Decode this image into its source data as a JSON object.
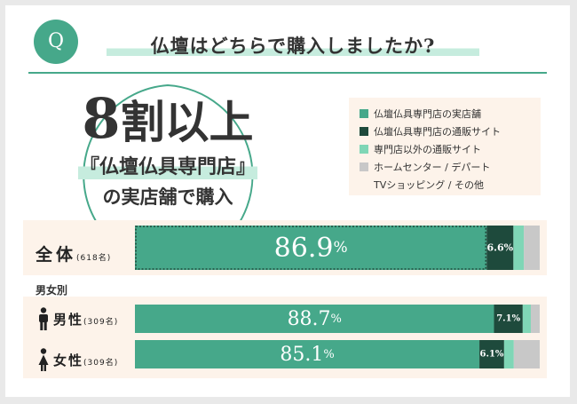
{
  "question": {
    "badge": "Q",
    "text": "仏壇はどちらで購入しましたか?"
  },
  "callout": {
    "big_number": "8",
    "big_suffix": "割以上",
    "line2": "『仏壇仏具専門店』",
    "line3": "の実店舗で購入"
  },
  "legend": [
    {
      "label": "仏壇仏具専門店の実店舗",
      "color": "#46a88a"
    },
    {
      "label": "仏壇仏具専門店の通販サイト",
      "color": "#1e4a3c"
    },
    {
      "label": "専門店以外の通販サイト",
      "color": "#7fd6b6"
    },
    {
      "label": "ホームセンター / デパート",
      "color": "#c8c8c8"
    },
    {
      "label": "TVショッピング / その他",
      "color": ""
    }
  ],
  "gender_section_title": "男女別",
  "chart_data": {
    "type": "bar",
    "orientation": "horizontal-stacked-100",
    "categories": [
      "全体",
      "男性",
      "女性"
    ],
    "sample_sizes": [
      "(618名)",
      "(309名)",
      "(309名)"
    ],
    "series": [
      {
        "name": "仏壇仏具専門店の実店舗",
        "values": [
          86.9,
          88.7,
          85.1
        ],
        "labels": [
          "86.9",
          "88.7",
          "85.1"
        ]
      },
      {
        "name": "仏壇仏具専門店の通販サイト",
        "values": [
          6.6,
          7.1,
          6.1
        ],
        "labels": [
          "6.6",
          "7.1",
          "6.1"
        ]
      },
      {
        "name": "専門店以外の通販サイト",
        "values": [
          2.6,
          2.0,
          2.4
        ]
      },
      {
        "name": "ホームセンター / デパート / TVショッピング / その他",
        "values": [
          3.9,
          2.2,
          6.4
        ]
      }
    ],
    "unit": "%",
    "colors": [
      "#46a88a",
      "#1e4a3c",
      "#7fd6b6",
      "#c8c8c8"
    ],
    "xlim": [
      0,
      100
    ]
  }
}
